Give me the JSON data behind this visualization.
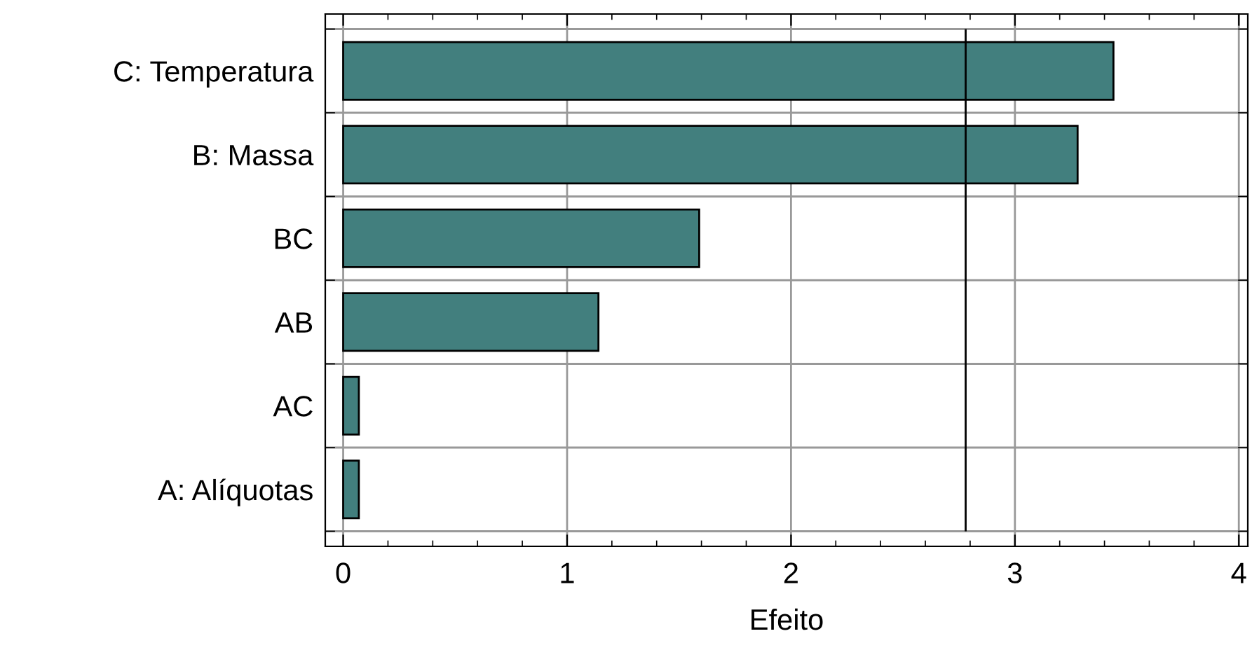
{
  "chart_data": {
    "type": "bar",
    "orientation": "horizontal",
    "xlabel": "Efeito",
    "categories": [
      "C: Temperatura",
      "B: Massa",
      "BC",
      "AB",
      "AC",
      "A: Alíquotas"
    ],
    "values": [
      3.44,
      3.28,
      1.59,
      1.14,
      0.07,
      0.07
    ],
    "color": "#427f7e",
    "xlim": [
      -0.08,
      4.04
    ],
    "xticks": [
      0,
      1,
      2,
      3,
      4
    ],
    "grid": true,
    "ref_lines": [
      {
        "axis": "x",
        "value": 2.78,
        "color": "#000000"
      }
    ]
  }
}
